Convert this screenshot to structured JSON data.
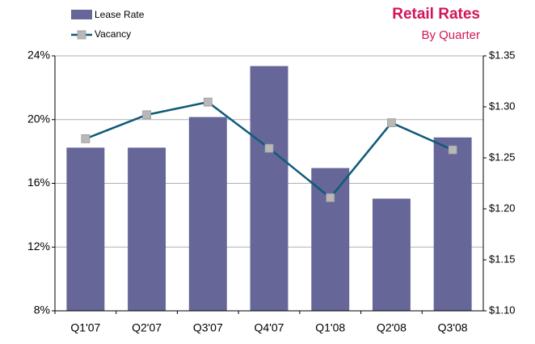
{
  "chart_data": {
    "type": "bar-line",
    "title": "Retail Rates",
    "subtitle": "By Quarter",
    "categories": [
      "Q1'07",
      "Q2'07",
      "Q3'07",
      "Q4'07",
      "Q1'08",
      "Q2'08",
      "Q3'08"
    ],
    "series": [
      {
        "name": "Lease Rate",
        "color": "#666699",
        "axis": "y2",
        "values": [
          1.26,
          1.26,
          1.29,
          1.34,
          1.24,
          1.21,
          1.27
        ]
      },
      {
        "name": "Vacancy",
        "color": "#0f5a7a",
        "marker_color": "#b8b8b8",
        "axis": "y",
        "values": [
          18.8,
          20.3,
          21.1,
          18.2,
          15.1,
          19.8,
          18.1
        ]
      }
    ],
    "ylim": [
      8,
      24
    ],
    "yticks": [
      {
        "value": 8,
        "label": "8%"
      },
      {
        "value": 12,
        "label": "12%"
      },
      {
        "value": 16,
        "label": "16%"
      },
      {
        "value": 20,
        "label": "20%"
      },
      {
        "value": 24,
        "label": "24%"
      }
    ],
    "y2lim": [
      1.1,
      1.35
    ],
    "y2ticks": [
      {
        "value": 1.1,
        "label": "$1.10"
      },
      {
        "value": 1.15,
        "label": "$1.15"
      },
      {
        "value": 1.2,
        "label": "$1.20"
      },
      {
        "value": 1.25,
        "label": "$1.25"
      },
      {
        "value": 1.3,
        "label": "$1.30"
      },
      {
        "value": 1.35,
        "label": "$1.35"
      }
    ],
    "grid": true
  }
}
